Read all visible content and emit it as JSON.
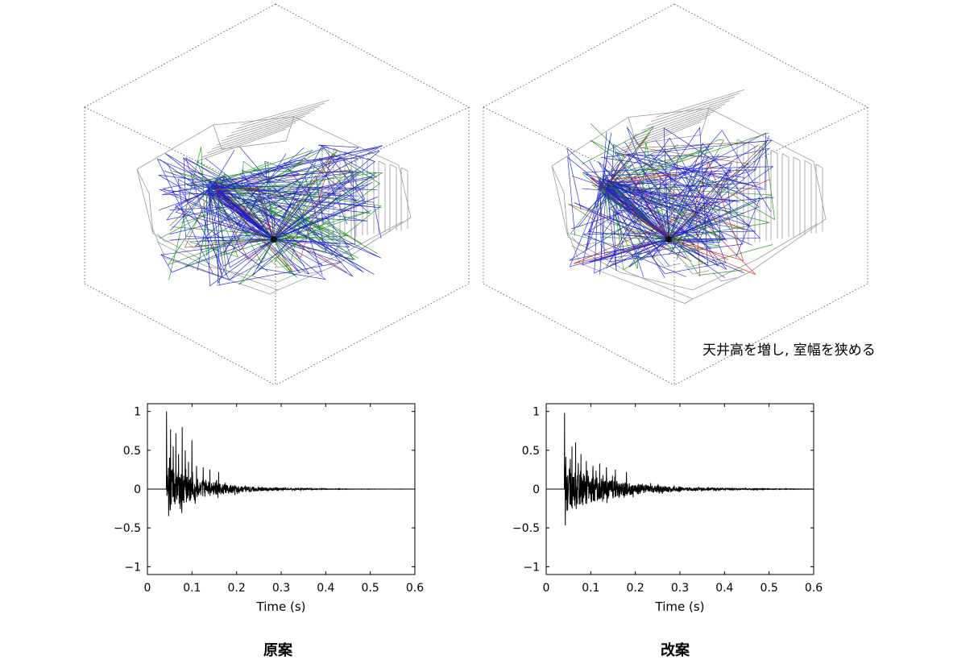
{
  "annotation": "天井高を増し, 室幅を狭める",
  "captions": {
    "left": "原案",
    "right": "改案"
  },
  "ray_colors": [
    "#1f1fcf",
    "#1a8f1a",
    "#c8201a",
    "#8a5a1a"
  ],
  "model_color": "#9a9a9a",
  "chart_data": [
    {
      "type": "line",
      "title": "",
      "xlabel": "Time (s)",
      "ylabel": "",
      "xlim": [
        0,
        0.6
      ],
      "ylim": [
        -1.1,
        1.1
      ],
      "xticks": [
        "0",
        "0.1",
        "0.2",
        "0.3",
        "0.4",
        "0.5",
        "0.6"
      ],
      "yticks": [
        "1",
        "0.5",
        "0",
        "−0.5",
        "−1"
      ],
      "grid": false,
      "series": [
        {
          "name": "",
          "direct_time": 0.043,
          "peaks": [
            {
              "t": 0.043,
              "v": 1.0
            },
            {
              "t": 0.052,
              "v": 0.77
            },
            {
              "t": 0.058,
              "v": 0.55
            },
            {
              "t": 0.064,
              "v": 0.72
            },
            {
              "t": 0.07,
              "v": 0.45
            },
            {
              "t": 0.078,
              "v": 0.8
            },
            {
              "t": 0.085,
              "v": 0.5
            },
            {
              "t": 0.092,
              "v": 0.35
            },
            {
              "t": 0.1,
              "v": 0.63
            },
            {
              "t": 0.11,
              "v": 0.3
            },
            {
              "t": 0.125,
              "v": 0.28
            },
            {
              "t": 0.14,
              "v": 0.25
            },
            {
              "t": 0.16,
              "v": 0.22
            }
          ],
          "envelope_tau": 0.085
        }
      ],
      "caption": "原案"
    },
    {
      "type": "line",
      "title": "",
      "xlabel": "Time (s)",
      "ylabel": "",
      "xlim": [
        0,
        0.6
      ],
      "ylim": [
        -1.1,
        1.1
      ],
      "xticks": [
        "0",
        "0.1",
        "0.2",
        "0.3",
        "0.4",
        "0.5",
        "0.6"
      ],
      "yticks": [
        "1",
        "0.5",
        "0",
        "−0.5",
        "−1"
      ],
      "grid": false,
      "series": [
        {
          "name": "",
          "direct_time": 0.041,
          "peaks": [
            {
              "t": 0.041,
              "v": 0.98
            },
            {
              "t": 0.058,
              "v": 0.55
            },
            {
              "t": 0.066,
              "v": 0.6
            },
            {
              "t": 0.078,
              "v": 0.45
            },
            {
              "t": 0.09,
              "v": 0.36
            },
            {
              "t": 0.105,
              "v": 0.3
            },
            {
              "t": 0.12,
              "v": 0.33
            },
            {
              "t": 0.135,
              "v": 0.28
            },
            {
              "t": 0.155,
              "v": 0.25
            },
            {
              "t": 0.18,
              "v": 0.22
            }
          ],
          "envelope_tau": 0.11
        }
      ],
      "caption": "改案"
    }
  ]
}
